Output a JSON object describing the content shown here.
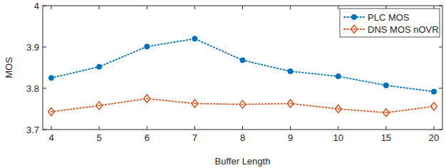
{
  "chart_data": {
    "type": "line",
    "x_label": "Buffer Length",
    "y_label": "MOS",
    "categories": [
      "4",
      "5",
      "6",
      "7",
      "8",
      "9",
      "10",
      "15",
      "20"
    ],
    "series": [
      {
        "name": "PLC MOS",
        "color": "#0072bd",
        "marker": "circle",
        "line_style": "dotted",
        "values": [
          3.825,
          3.852,
          3.901,
          3.92,
          3.868,
          3.841,
          3.829,
          3.807,
          3.792
        ]
      },
      {
        "name": "DNS MOS nOVR",
        "color": "#d95319",
        "marker": "diamond",
        "line_style": "dotted",
        "values": [
          3.743,
          3.758,
          3.775,
          3.763,
          3.761,
          3.763,
          3.75,
          3.741,
          3.756
        ]
      }
    ],
    "ylim": [
      3.7,
      4
    ],
    "yticks": [
      3.7,
      3.8,
      3.9,
      4
    ],
    "grid": false,
    "legend": "upper-right"
  }
}
